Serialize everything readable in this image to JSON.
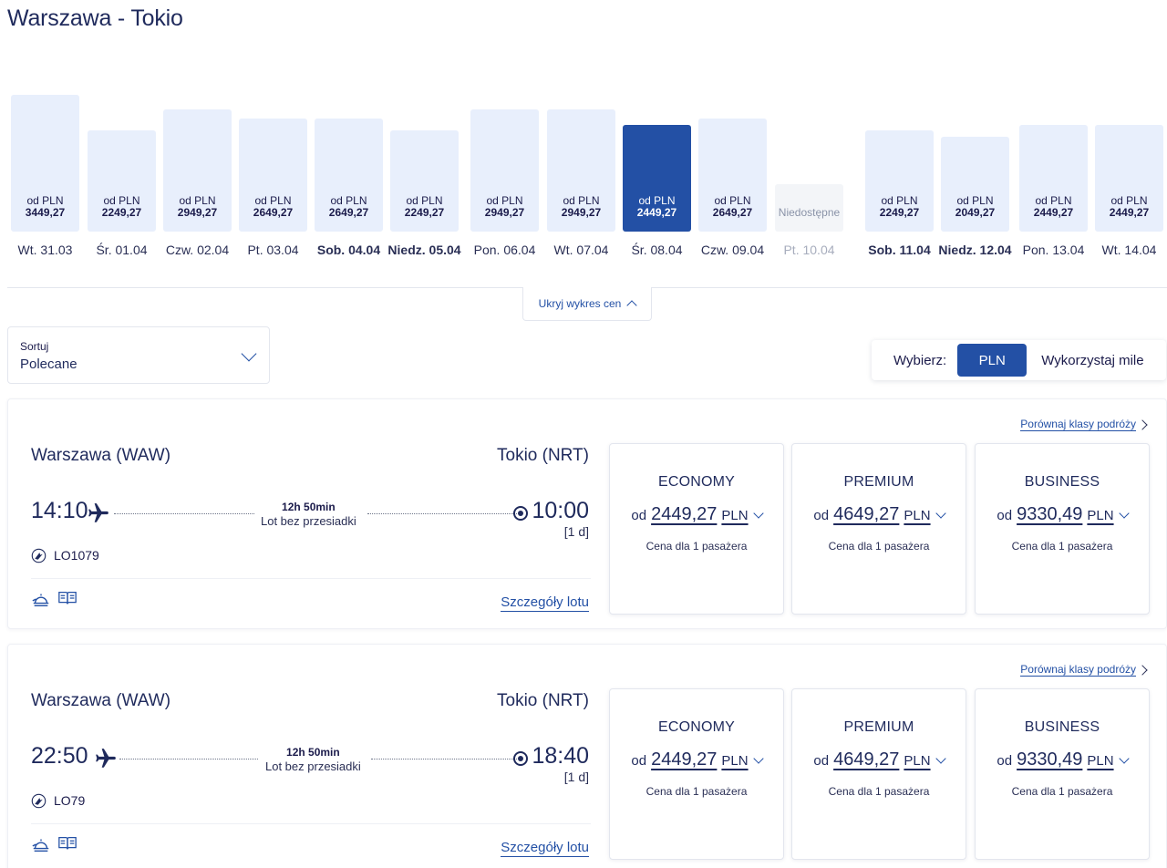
{
  "page": {
    "title": "Warszawa - Tokio"
  },
  "chart_data": {
    "type": "bar",
    "categories": [
      "Wt. 31.03",
      "Śr. 01.04",
      "Czw. 02.04",
      "Pt. 03.04",
      "Sob. 04.04",
      "Niedz. 05.04",
      "Pon. 06.04",
      "Wt. 07.04",
      "Śr. 08.04",
      "Czw. 09.04",
      "Pt. 10.04",
      "Sob. 11.04",
      "Niedz. 12.04",
      "Pon. 13.04",
      "Wt. 14.04"
    ],
    "price_labels": [
      "3449,27",
      "2249,27",
      "2949,27",
      "2649,27",
      "2649,27",
      "2249,27",
      "2949,27",
      "2949,27",
      "2449,27",
      "2649,27",
      null,
      "2249,27",
      "2049,27",
      "2449,27",
      "2449,27"
    ],
    "values": [
      3449.27,
      2249.27,
      2949.27,
      2649.27,
      2649.27,
      2249.27,
      2949.27,
      2949.27,
      2449.27,
      2649.27,
      null,
      2249.27,
      2049.27,
      2449.27,
      2449.27
    ],
    "price_prefix": "od PLN",
    "unavailable_label": "Niedostępne",
    "selected_index": 8,
    "bold_indices": [
      4,
      5,
      11,
      12
    ],
    "colors": {
      "bar": "#e8effc",
      "selected": "#2350a5",
      "unavailable": "#f3f5f8"
    }
  },
  "chart_toggle": {
    "label": "Ukryj wykres cen"
  },
  "sort": {
    "label": "Sortuj",
    "value": "Polecane"
  },
  "currency": {
    "label": "Wybierz:",
    "options": [
      "PLN",
      "Wykorzystaj mile"
    ],
    "selected": "PLN"
  },
  "flights": [
    {
      "from": "Warszawa (WAW)",
      "to": "Tokio (NRT)",
      "dep_time": "14:10",
      "arr_time": "10:00",
      "day_shift": "[1 d]",
      "duration": "12h 50min",
      "stops": "Lot bez przesiadki",
      "flight_no": "LO1079",
      "details_label": "Szczegóły lotu",
      "compare_label": "Porównaj klasy podróży",
      "fares": [
        {
          "name": "ECONOMY",
          "prefix": "od",
          "amount": "2449,27",
          "currency": "PLN",
          "note": "Cena dla 1 pasażera"
        },
        {
          "name": "PREMIUM",
          "prefix": "od",
          "amount": "4649,27",
          "currency": "PLN",
          "note": "Cena dla 1 pasażera"
        },
        {
          "name": "BUSINESS",
          "prefix": "od",
          "amount": "9330,49",
          "currency": "PLN",
          "note": "Cena dla 1 pasażera"
        }
      ]
    },
    {
      "from": "Warszawa (WAW)",
      "to": "Tokio (NRT)",
      "dep_time": "22:50",
      "arr_time": "18:40",
      "day_shift": "[1 d]",
      "duration": "12h 50min",
      "stops": "Lot bez przesiadki",
      "flight_no": "LO79",
      "details_label": "Szczegóły lotu",
      "compare_label": "Porównaj klasy podróży",
      "fares": [
        {
          "name": "ECONOMY",
          "prefix": "od",
          "amount": "2449,27",
          "currency": "PLN",
          "note": "Cena dla 1 pasażera"
        },
        {
          "name": "PREMIUM",
          "prefix": "od",
          "amount": "4649,27",
          "currency": "PLN",
          "note": "Cena dla 1 pasażera"
        },
        {
          "name": "BUSINESS",
          "prefix": "od",
          "amount": "9330,49",
          "currency": "PLN",
          "note": "Cena dla 1 pasażera"
        }
      ]
    }
  ],
  "icons": {
    "plane": "plane-icon",
    "arrival": "arrival-dot-icon",
    "airline": "airline-logo-icon",
    "meal": "meal-icon",
    "magazine": "magazine-icon"
  }
}
